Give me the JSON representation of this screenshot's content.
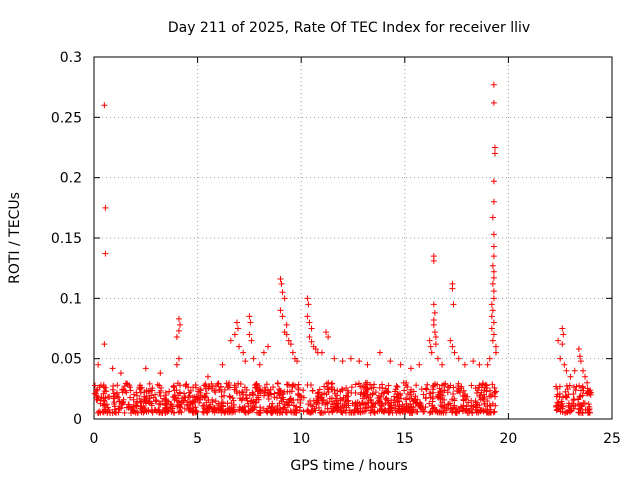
{
  "chart_data": {
    "type": "scatter",
    "title": "Day 211 of 2025, Rate Of TEC Index for receiver lliv",
    "xlabel": "GPS time / hours",
    "ylabel": "ROTI / TECUs",
    "xlim": [
      0,
      25
    ],
    "ylim": [
      0,
      0.3
    ],
    "x_ticks": [
      0,
      5,
      10,
      15,
      20,
      25
    ],
    "x_tick_labels": [
      "0",
      "5",
      "10",
      "15",
      "20",
      "25"
    ],
    "y_ticks": [
      0,
      0.05,
      0.1,
      0.15,
      0.2,
      0.25,
      0.3
    ],
    "y_tick_labels": [
      "0",
      "0.05",
      "0.1",
      "0.15",
      "0.2",
      "0.25",
      "0.3"
    ],
    "grid": true,
    "marker": "+",
    "color": "#ff0000",
    "series": [
      {
        "name": "ROTI",
        "dense_segments": [
          {
            "x_start": 0.0,
            "x_end": 19.4,
            "y_low": 0.005,
            "y_high": 0.03
          },
          {
            "x_start": 22.3,
            "x_end": 24.0,
            "y_low": 0.005,
            "y_high": 0.028
          }
        ],
        "points": [
          [
            0.5,
            0.26
          ],
          [
            0.55,
            0.175
          ],
          [
            0.55,
            0.137
          ],
          [
            0.5,
            0.062
          ],
          [
            0.2,
            0.045
          ],
          [
            0.9,
            0.042
          ],
          [
            1.3,
            0.038
          ],
          [
            2.5,
            0.042
          ],
          [
            3.2,
            0.038
          ],
          [
            4.1,
            0.083
          ],
          [
            4.15,
            0.078
          ],
          [
            4.1,
            0.073
          ],
          [
            4.0,
            0.068
          ],
          [
            4.1,
            0.05
          ],
          [
            4.0,
            0.045
          ],
          [
            5.5,
            0.035
          ],
          [
            6.2,
            0.045
          ],
          [
            6.6,
            0.065
          ],
          [
            6.8,
            0.07
          ],
          [
            6.9,
            0.08
          ],
          [
            6.95,
            0.075
          ],
          [
            7.0,
            0.06
          ],
          [
            7.2,
            0.055
          ],
          [
            7.5,
            0.085
          ],
          [
            7.55,
            0.08
          ],
          [
            7.5,
            0.07
          ],
          [
            7.6,
            0.065
          ],
          [
            7.7,
            0.05
          ],
          [
            7.3,
            0.048
          ],
          [
            8.2,
            0.055
          ],
          [
            8.4,
            0.06
          ],
          [
            8.0,
            0.045
          ],
          [
            9.0,
            0.116
          ],
          [
            9.05,
            0.112
          ],
          [
            9.1,
            0.105
          ],
          [
            9.2,
            0.1
          ],
          [
            9.0,
            0.09
          ],
          [
            9.1,
            0.085
          ],
          [
            9.3,
            0.078
          ],
          [
            9.2,
            0.072
          ],
          [
            9.3,
            0.07
          ],
          [
            9.4,
            0.065
          ],
          [
            9.5,
            0.062
          ],
          [
            9.6,
            0.055
          ],
          [
            9.7,
            0.05
          ],
          [
            9.8,
            0.048
          ],
          [
            10.3,
            0.1
          ],
          [
            10.35,
            0.095
          ],
          [
            10.3,
            0.085
          ],
          [
            10.4,
            0.08
          ],
          [
            10.5,
            0.075
          ],
          [
            10.4,
            0.068
          ],
          [
            10.5,
            0.064
          ],
          [
            10.6,
            0.06
          ],
          [
            10.7,
            0.058
          ],
          [
            10.8,
            0.055
          ],
          [
            11.2,
            0.072
          ],
          [
            11.3,
            0.068
          ],
          [
            11.0,
            0.055
          ],
          [
            11.6,
            0.05
          ],
          [
            12.0,
            0.048
          ],
          [
            12.4,
            0.05
          ],
          [
            12.8,
            0.048
          ],
          [
            13.2,
            0.045
          ],
          [
            13.8,
            0.055
          ],
          [
            14.3,
            0.048
          ],
          [
            14.8,
            0.045
          ],
          [
            15.3,
            0.042
          ],
          [
            15.7,
            0.045
          ],
          [
            16.2,
            0.065
          ],
          [
            16.25,
            0.06
          ],
          [
            16.3,
            0.055
          ],
          [
            16.4,
            0.135
          ],
          [
            16.4,
            0.131
          ],
          [
            16.4,
            0.095
          ],
          [
            16.45,
            0.088
          ],
          [
            16.4,
            0.082
          ],
          [
            16.4,
            0.078
          ],
          [
            16.45,
            0.072
          ],
          [
            16.5,
            0.068
          ],
          [
            16.5,
            0.062
          ],
          [
            16.6,
            0.05
          ],
          [
            16.8,
            0.045
          ],
          [
            17.3,
            0.112
          ],
          [
            17.3,
            0.108
          ],
          [
            17.35,
            0.095
          ],
          [
            17.2,
            0.065
          ],
          [
            17.3,
            0.06
          ],
          [
            17.4,
            0.055
          ],
          [
            17.6,
            0.05
          ],
          [
            17.9,
            0.045
          ],
          [
            18.3,
            0.048
          ],
          [
            18.6,
            0.045
          ],
          [
            19.3,
            0.277
          ],
          [
            19.3,
            0.262
          ],
          [
            19.35,
            0.225
          ],
          [
            19.35,
            0.22
          ],
          [
            19.3,
            0.197
          ],
          [
            19.3,
            0.18
          ],
          [
            19.25,
            0.167
          ],
          [
            19.3,
            0.153
          ],
          [
            19.3,
            0.143
          ],
          [
            19.3,
            0.135
          ],
          [
            19.25,
            0.127
          ],
          [
            19.3,
            0.122
          ],
          [
            19.3,
            0.117
          ],
          [
            19.25,
            0.112
          ],
          [
            19.3,
            0.106
          ],
          [
            19.3,
            0.1
          ],
          [
            19.2,
            0.095
          ],
          [
            19.25,
            0.09
          ],
          [
            19.2,
            0.085
          ],
          [
            19.3,
            0.08
          ],
          [
            19.2,
            0.075
          ],
          [
            19.3,
            0.07
          ],
          [
            19.25,
            0.065
          ],
          [
            19.4,
            0.06
          ],
          [
            19.4,
            0.055
          ],
          [
            19.1,
            0.05
          ],
          [
            19.0,
            0.045
          ],
          [
            22.4,
            0.065
          ],
          [
            22.5,
            0.05
          ],
          [
            22.6,
            0.075
          ],
          [
            22.65,
            0.07
          ],
          [
            22.6,
            0.062
          ],
          [
            22.7,
            0.045
          ],
          [
            22.8,
            0.04
          ],
          [
            23.0,
            0.035
          ],
          [
            23.2,
            0.04
          ],
          [
            23.4,
            0.058
          ],
          [
            23.45,
            0.052
          ],
          [
            23.5,
            0.048
          ],
          [
            23.6,
            0.04
          ],
          [
            23.7,
            0.035
          ],
          [
            23.8,
            0.03
          ]
        ]
      }
    ]
  }
}
